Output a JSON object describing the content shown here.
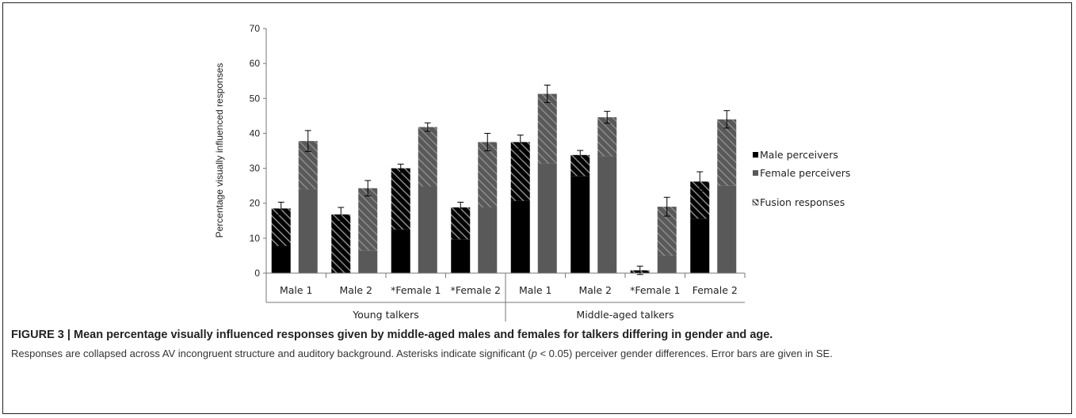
{
  "figure": {
    "title": "FIGURE 3 | Mean percentage visually influenced responses given by middle-aged males and females for talkers differing in gender and age.",
    "caption_part1": "Responses are collapsed across AV incongruent structure and auditory background. Asterisks indicate significant (",
    "caption_p": "p",
    "caption_part2": " < 0.05) perceiver gender differences. Error bars are given in SE."
  },
  "colors": {
    "male": "#000000",
    "female": "#595959",
    "hatch_on_male": "#8a8a8a",
    "hatch_on_female": "#8c8c8c",
    "errorbar": "#000000"
  },
  "chart_data": {
    "type": "bar",
    "subtype": "stacked-grouped",
    "ylabel": "Percentage visually influenced responses",
    "ylim": [
      0,
      70
    ],
    "yticks": [
      0,
      10,
      20,
      30,
      40,
      50,
      60,
      70
    ],
    "groups": [
      {
        "label": "Young talkers",
        "categories": [
          "Male 1",
          "Male 2",
          "*Female 1",
          "*Female 2"
        ]
      },
      {
        "label": "Middle-aged talkers",
        "categories": [
          "Male 1",
          "Male 2",
          "*Female 1",
          "Female 2"
        ]
      }
    ],
    "categories": [
      "Male 1",
      "Male 2",
      "*Female 1",
      "*Female 2",
      "Male 1",
      "Male 2",
      "*Female 1",
      "Female 2"
    ],
    "legend": [
      "Male perceivers",
      "Female perceivers",
      "Fusion responses"
    ],
    "legend_position": "right",
    "series": [
      {
        "name": "Male perceivers",
        "total": [
          18.5,
          16.8,
          30.0,
          18.8,
          37.5,
          33.8,
          0.8,
          26.2
        ],
        "fusion": [
          10.7,
          16.8,
          17.5,
          9.1,
          16.8,
          6.0,
          0.8,
          10.6
        ],
        "se": [
          1.8,
          2.0,
          1.2,
          1.5,
          2.0,
          1.3,
          1.2,
          2.8
        ]
      },
      {
        "name": "Female perceivers",
        "total": [
          37.8,
          24.3,
          41.8,
          37.5,
          51.3,
          44.6,
          19.0,
          44.0
        ],
        "fusion": [
          13.8,
          17.8,
          17.0,
          18.7,
          19.9,
          11.1,
          14.0,
          19.0
        ],
        "se": [
          3.0,
          2.2,
          1.2,
          2.5,
          2.5,
          1.7,
          2.7,
          2.5
        ]
      }
    ]
  }
}
